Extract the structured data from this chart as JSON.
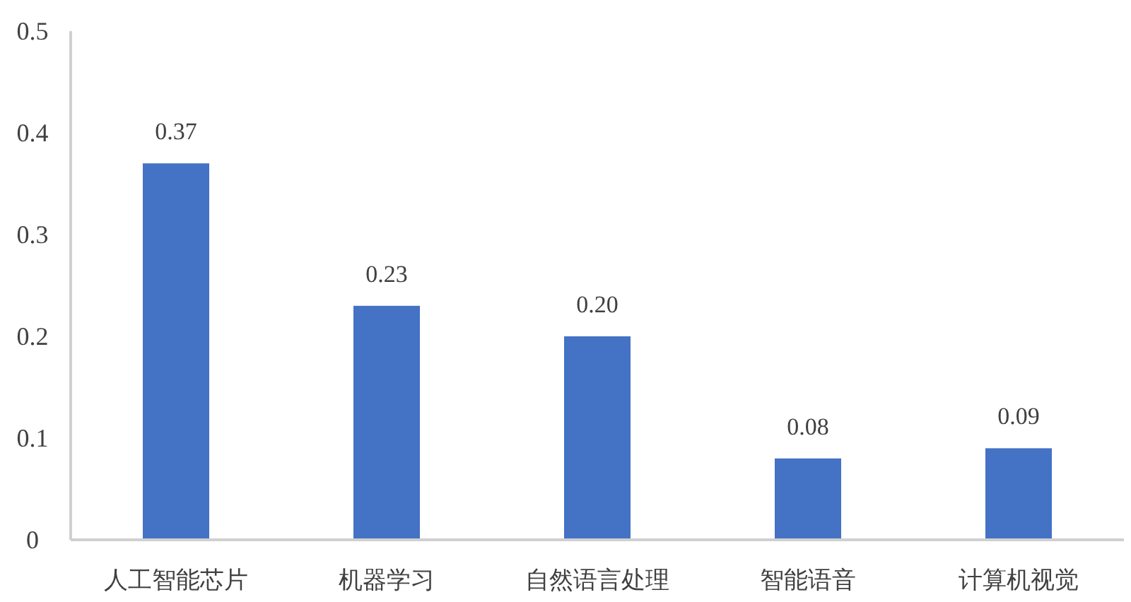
{
  "chart_data": {
    "type": "bar",
    "categories": [
      "人工智能芯片",
      "机器学习",
      "自然语言处理",
      "智能语音",
      "计算机视觉"
    ],
    "values": [
      0.37,
      0.23,
      0.2,
      0.08,
      0.09
    ],
    "color": "#4472c4",
    "value_labels": [
      "0.37",
      "0.23",
      "0.20",
      "0.08",
      "0.09"
    ],
    "ylim": [
      0,
      0.5
    ],
    "yticks": [
      0,
      0.1,
      0.2,
      0.3,
      0.4,
      0.5
    ],
    "grid": false
  }
}
